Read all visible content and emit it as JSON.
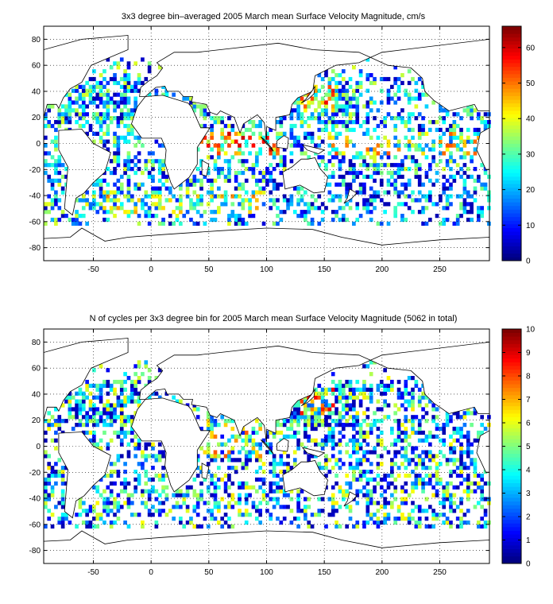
{
  "chart_data": [
    {
      "type": "heatmap",
      "title": "3x3 degree bin–averaged 2005 March mean Surface Velocity Magnitude, cm/s",
      "xlabel": "",
      "ylabel": "",
      "xlim": [
        -93,
        293
      ],
      "ylim": [
        -90,
        90
      ],
      "x_ticks": [
        "-50",
        "0",
        "50",
        "100",
        "150",
        "200",
        "250"
      ],
      "y_ticks": [
        "80",
        "60",
        "40",
        "20",
        "0",
        "-20",
        "-40",
        "-60",
        "-80"
      ],
      "colorbar": {
        "min": 0,
        "max": 66,
        "ticks": [
          "0",
          "10",
          "20",
          "30",
          "40",
          "50",
          "60"
        ],
        "colormap": "jet"
      },
      "grid": true,
      "bin_size_deg": 3,
      "values_note_regions": [
        {
          "lon": [
            130,
            160
          ],
          "lat": [
            25,
            45
          ],
          "mean": 40
        },
        {
          "lon": [
            -75,
            -40
          ],
          "lat": [
            25,
            45
          ],
          "mean": 35
        },
        {
          "lon": [
            40,
            110
          ],
          "lat": [
            -10,
            10
          ],
          "mean": 45
        },
        {
          "lon": [
            150,
            280
          ],
          "lat": [
            -10,
            10
          ],
          "mean": 35
        },
        {
          "lon": [
            -60,
            100
          ],
          "lat": [
            -60,
            -35
          ],
          "mean": 30
        },
        {
          "lon": [
            100,
            290
          ],
          "lat": [
            -60,
            -20
          ],
          "mean": 15
        }
      ]
    },
    {
      "type": "heatmap",
      "title": "N of cycles per 3x3 degree bin for 2005 March mean Surface Velocity Magnitude (5062 in total)",
      "xlabel": "",
      "ylabel": "",
      "xlim": [
        -93,
        293
      ],
      "ylim": [
        -90,
        90
      ],
      "x_ticks": [
        "-50",
        "0",
        "50",
        "100",
        "150",
        "200",
        "250"
      ],
      "y_ticks": [
        "80",
        "60",
        "40",
        "20",
        "0",
        "-20",
        "-40",
        "-60",
        "-80"
      ],
      "colorbar": {
        "min": 0,
        "max": 10,
        "ticks": [
          "0",
          "1",
          "2",
          "3",
          "4",
          "5",
          "6",
          "7",
          "8",
          "9",
          "10"
        ],
        "colormap": "jet"
      },
      "grid": true,
      "bin_size_deg": 3,
      "total_cycles": 5062
    }
  ]
}
